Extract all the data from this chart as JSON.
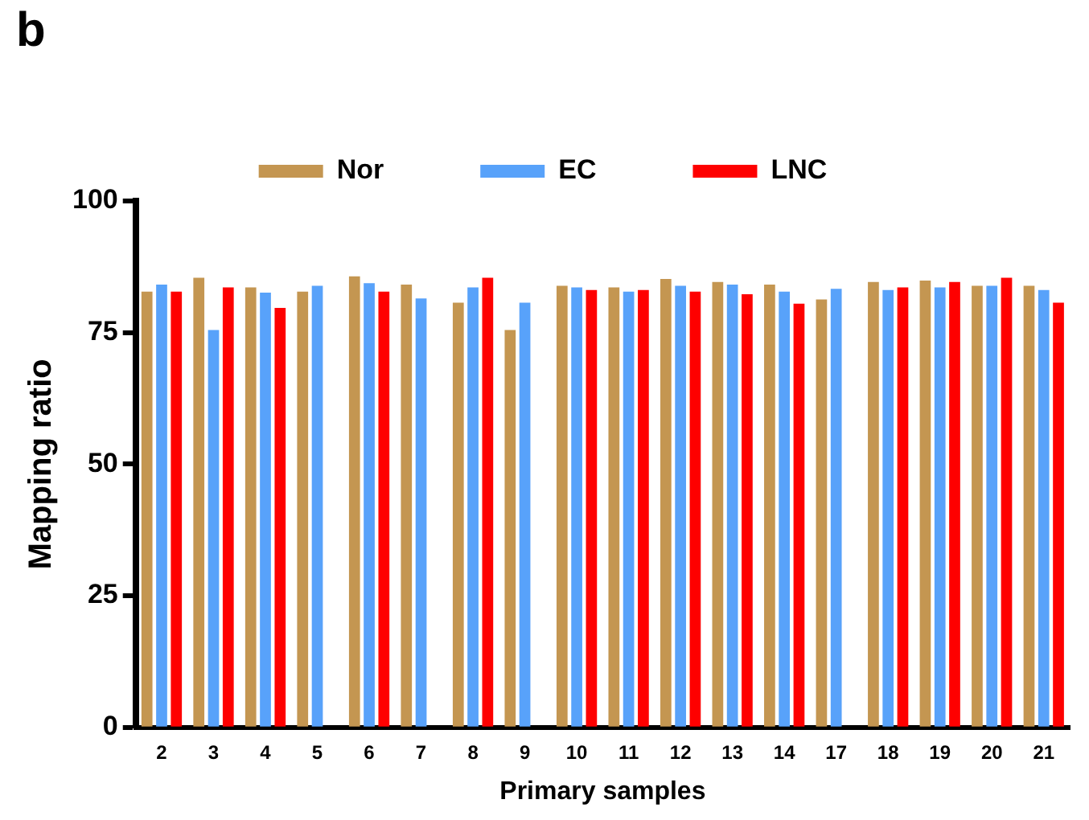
{
  "chart_data": {
    "type": "bar",
    "title": "b",
    "xlabel": "Primary samples",
    "ylabel": "Mapping ratio",
    "categories": [
      "2",
      "3",
      "4",
      "5",
      "6",
      "7",
      "8",
      "9",
      "10",
      "11",
      "12",
      "13",
      "14",
      "17",
      "18",
      "19",
      "20",
      "21"
    ],
    "series": [
      {
        "name": "Nor",
        "color": "#c49651",
        "values": [
          82.8,
          85.4,
          83.6,
          82.8,
          85.7,
          84.1,
          80.7,
          75.5,
          83.9,
          83.6,
          85.2,
          84.6,
          84.1,
          81.3,
          84.6,
          84.9,
          83.9,
          83.9
        ]
      },
      {
        "name": "EC",
        "color": "#58a2fa",
        "values": [
          84.1,
          75.5,
          82.6,
          83.9,
          84.4,
          81.5,
          83.6,
          80.7,
          83.6,
          82.8,
          83.9,
          84.1,
          82.8,
          83.3,
          83.1,
          83.6,
          83.9,
          83.1
        ]
      },
      {
        "name": "LNC",
        "color": "#fe0000",
        "values": [
          82.8,
          83.6,
          79.7,
          null,
          82.8,
          null,
          85.4,
          null,
          83.1,
          83.1,
          82.8,
          82.3,
          80.5,
          null,
          83.6,
          84.6,
          85.4,
          80.7
        ]
      }
    ],
    "ylim": [
      0,
      100
    ],
    "yticks": [
      0,
      25,
      50,
      75,
      100
    ],
    "grid": false,
    "legend": "top"
  }
}
